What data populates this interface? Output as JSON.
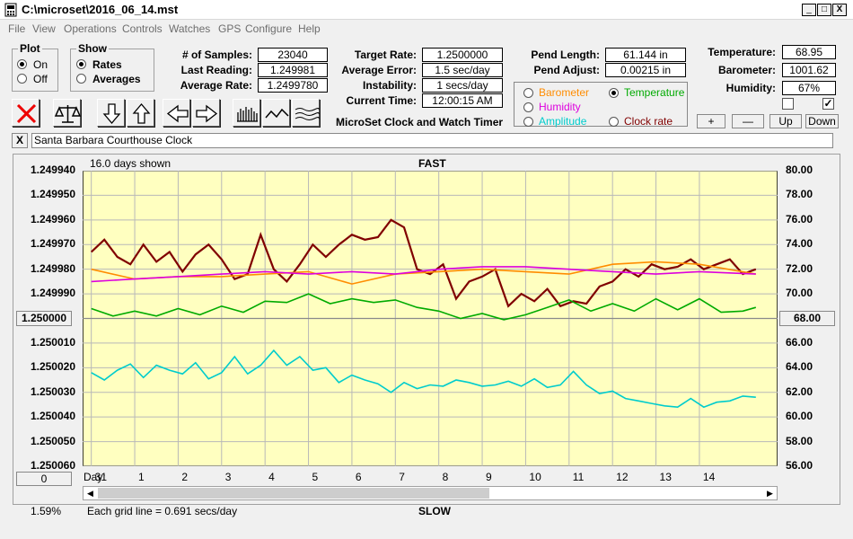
{
  "window": {
    "title": "C:\\microset\\2016_06_14.mst",
    "minimize": "_",
    "maximize": "□",
    "close": "X"
  },
  "menu": [
    "File",
    "View",
    "Operations",
    "Controls",
    "Watches",
    "GPS",
    "Configure",
    "Help"
  ],
  "plot_group": {
    "title": "Plot",
    "options": [
      "On",
      "Off"
    ],
    "selected": "On"
  },
  "show_group": {
    "title": "Show",
    "options": [
      "Rates",
      "Averages"
    ],
    "selected": "Rates"
  },
  "stats": {
    "samples_label": "# of Samples:",
    "samples": "23040",
    "last_reading_label": "Last Reading:",
    "last_reading": "1.249981",
    "average_rate_label": "Average Rate:",
    "average_rate": "1.2499780"
  },
  "targets": {
    "target_rate_label": "Target Rate:",
    "target_rate": "1.2500000",
    "average_error_label": "Average Error:",
    "average_error": "1.5 sec/day",
    "instability_label": "Instability:",
    "instability": "1 secs/day",
    "current_time_label": "Current Time:",
    "current_time": "12:00:15 AM"
  },
  "app_caption": "MicroSet Clock and Watch Timer",
  "pendulum": {
    "length_label": "Pend Length:",
    "length": "61.144 in",
    "adjust_label": "Pend Adjust:",
    "adjust": "0.00215 in"
  },
  "sensor_select": {
    "options": [
      "Barometer",
      "Temperature",
      "Humidity",
      "Clock rate",
      "Amplitude"
    ],
    "selected": "Temperature",
    "colors": {
      "Barometer": "#ff8c00",
      "Temperature": "#00aa00",
      "Humidity": "#dd00dd",
      "Clock rate": "#800000",
      "Amplitude": "#00cccc"
    }
  },
  "environment": {
    "temperature_label": "Temperature:",
    "temperature": "68.95",
    "barometer_label": "Barometer:",
    "barometer": "1001.62",
    "humidity_label": "Humidity:",
    "humidity": "67%",
    "check_left": false,
    "check_right": true
  },
  "scale_buttons": {
    "plus": "+",
    "minus": "—",
    "up": "Up",
    "down": "Down"
  },
  "clock_name": {
    "close": "X",
    "value": "Santa Barbara Courthouse Clock"
  },
  "chart_data": {
    "type": "line",
    "top_label": "FAST",
    "bottom_label": "SLOW",
    "days_shown": "16.0 days shown",
    "grid_note": "Each grid line = 0.691 secs/day",
    "zoom_readout": "1.59%",
    "left_center_button": "1.250000",
    "left_bottom_button": "0",
    "right_center_button": "68.00",
    "x_label": "Day:",
    "x_ticks": [
      "31",
      "1",
      "2",
      "3",
      "4",
      "5",
      "6",
      "7",
      "8",
      "9",
      "10",
      "11",
      "12",
      "13",
      "14"
    ],
    "y_left_ticks": [
      "1.249940",
      "1.249950",
      "1.249960",
      "1.249970",
      "1.249980",
      "1.249990",
      "1.250000",
      "1.250010",
      "1.250020",
      "1.250030",
      "1.250040",
      "1.250050",
      "1.250060"
    ],
    "y_right_ticks": [
      "80.00",
      "78.00",
      "76.00",
      "74.00",
      "72.00",
      "70.00",
      "68.00",
      "66.00",
      "64.00",
      "62.00",
      "60.00",
      "58.00",
      "56.00"
    ],
    "ylim_left": [
      1.24994,
      1.25006
    ],
    "ylim_right": [
      56,
      80
    ],
    "xlim": [
      -0.2,
      15.8
    ],
    "grid": true,
    "series": [
      {
        "name": "Clock rate",
        "color": "#800000",
        "axis": "left",
        "x": [
          0,
          0.3,
          0.6,
          0.9,
          1.2,
          1.5,
          1.8,
          2.1,
          2.4,
          2.7,
          3.0,
          3.3,
          3.6,
          3.9,
          4.2,
          4.5,
          4.8,
          5.1,
          5.4,
          5.7,
          6.0,
          6.3,
          6.6,
          6.9,
          7.2,
          7.5,
          7.8,
          8.1,
          8.4,
          8.7,
          9.0,
          9.3,
          9.6,
          9.9,
          10.2,
          10.5,
          10.8,
          11.1,
          11.4,
          11.7,
          12.0,
          12.3,
          12.6,
          12.9,
          13.2,
          13.5,
          13.8,
          14.1,
          14.4,
          14.7,
          15.0,
          15.3
        ],
        "y": [
          1.249973,
          1.249968,
          1.249975,
          1.249978,
          1.24997,
          1.249977,
          1.249973,
          1.249981,
          1.249974,
          1.24997,
          1.249976,
          1.249984,
          1.249982,
          1.249966,
          1.24998,
          1.249985,
          1.249978,
          1.24997,
          1.249975,
          1.24997,
          1.249966,
          1.249968,
          1.249967,
          1.24996,
          1.249963,
          1.24998,
          1.249982,
          1.249978,
          1.249992,
          1.249985,
          1.249983,
          1.24998,
          1.249995,
          1.24999,
          1.249993,
          1.249988,
          1.249995,
          1.249993,
          1.249994,
          1.249987,
          1.249985,
          1.24998,
          1.249983,
          1.249978,
          1.24998,
          1.249979,
          1.249976,
          1.24998,
          1.249978,
          1.249976,
          1.249982,
          1.24998
        ]
      },
      {
        "name": "Barometer",
        "color": "#ff8c00",
        "axis": "left",
        "x": [
          0,
          1,
          2,
          3,
          4,
          5,
          6,
          7,
          8,
          9,
          10,
          11,
          12,
          13,
          14,
          15.3
        ],
        "y": [
          1.24998,
          1.249984,
          1.249983,
          1.249983,
          1.249982,
          1.249981,
          1.249986,
          1.249982,
          1.249981,
          1.24998,
          1.249981,
          1.249982,
          1.249978,
          1.249977,
          1.249978,
          1.249982
        ]
      },
      {
        "name": "Humidity",
        "color": "#dd00dd",
        "axis": "left",
        "x": [
          0,
          1,
          2,
          3,
          4,
          5,
          6,
          7,
          8,
          9,
          10,
          11,
          12,
          13,
          14,
          15.3
        ],
        "y": [
          1.249985,
          1.249984,
          1.249983,
          1.249982,
          1.249981,
          1.249982,
          1.249981,
          1.249982,
          1.24998,
          1.249979,
          1.249979,
          1.24998,
          1.249981,
          1.249982,
          1.249981,
          1.249982
        ]
      },
      {
        "name": "Temperature",
        "color": "#00aa00",
        "axis": "right",
        "x": [
          0,
          0.5,
          1,
          1.5,
          2,
          2.5,
          3,
          3.5,
          4,
          4.5,
          5,
          5.5,
          6,
          6.5,
          7,
          7.5,
          8,
          8.5,
          9,
          9.5,
          10,
          10.5,
          11,
          11.5,
          12,
          12.5,
          13,
          13.5,
          14,
          14.5,
          15,
          15.3
        ],
        "y": [
          68.8,
          68.2,
          68.6,
          68.2,
          68.8,
          68.3,
          69.0,
          68.5,
          69.4,
          69.3,
          70.0,
          69.2,
          69.6,
          69.3,
          69.5,
          68.9,
          68.6,
          68.0,
          68.4,
          67.9,
          68.3,
          68.9,
          69.5,
          68.6,
          69.2,
          68.6,
          69.6,
          68.7,
          69.6,
          68.5,
          68.6,
          68.9
        ]
      },
      {
        "name": "Amplitude",
        "color": "#00cccc",
        "axis": "right",
        "x": [
          0,
          0.3,
          0.6,
          0.9,
          1.2,
          1.5,
          1.8,
          2.1,
          2.4,
          2.7,
          3.0,
          3.3,
          3.6,
          3.9,
          4.2,
          4.5,
          4.8,
          5.1,
          5.4,
          5.7,
          6.0,
          6.3,
          6.6,
          6.9,
          7.2,
          7.5,
          7.8,
          8.1,
          8.4,
          8.7,
          9.0,
          9.3,
          9.6,
          9.9,
          10.2,
          10.5,
          10.8,
          11.1,
          11.4,
          11.7,
          12.0,
          12.3,
          12.6,
          12.9,
          13.2,
          13.5,
          13.8,
          14.1,
          14.4,
          14.7,
          15.0,
          15.3
        ],
        "y": [
          63.6,
          63.0,
          63.8,
          64.3,
          63.2,
          64.2,
          63.8,
          63.5,
          64.4,
          63.1,
          63.6,
          64.9,
          63.5,
          64.2,
          65.4,
          64.2,
          64.9,
          63.8,
          64.0,
          62.8,
          63.4,
          63.0,
          62.7,
          62.0,
          62.8,
          62.3,
          62.6,
          62.5,
          63.0,
          62.8,
          62.5,
          62.6,
          62.9,
          62.5,
          63.1,
          62.4,
          62.6,
          63.7,
          62.6,
          61.9,
          62.1,
          61.5,
          61.3,
          61.1,
          60.9,
          60.8,
          61.5,
          60.8,
          61.2,
          61.3,
          61.7,
          61.6
        ]
      }
    ]
  }
}
